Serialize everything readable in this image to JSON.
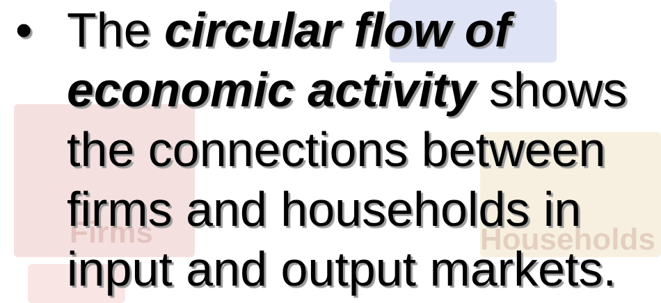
{
  "slide": {
    "bullet": "•",
    "lines": [
      [
        {
          "text": "The ",
          "emphasis": false
        },
        {
          "text": "circular flow of",
          "emphasis": true
        }
      ],
      [
        {
          "text": "economic activity",
          "emphasis": true
        },
        {
          "text": " shows",
          "emphasis": false
        }
      ],
      [
        {
          "text": "the connections between",
          "emphasis": false
        }
      ],
      [
        {
          "text": "firms and households in",
          "emphasis": false
        }
      ],
      [
        {
          "text": "input and output markets.",
          "emphasis": false
        }
      ]
    ],
    "background_labels": [
      "Firms",
      "Households"
    ]
  }
}
